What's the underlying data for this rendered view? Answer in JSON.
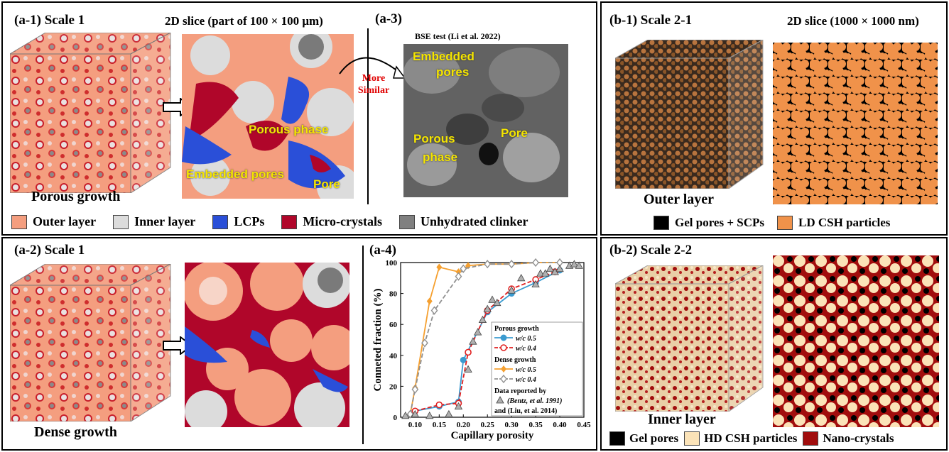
{
  "panel_a1": {
    "title": "(a-1) Scale 1",
    "slice_title": "2D slice (part of 100 × 100 μm)",
    "caption": "Porous growth",
    "labels": {
      "porous_phase": "Porous phase",
      "embedded_pores": "Embedded pores",
      "pore": "Pore"
    }
  },
  "panel_a3": {
    "title": "(a-3)",
    "bse_title": "BSE test (Li et al. 2022)",
    "labels": {
      "embedded": "Embedded",
      "pores": "pores",
      "porous": "Porous",
      "phase": "phase",
      "pore": "Pore"
    },
    "more_similar_line1": "More",
    "more_similar_line2": "Similar"
  },
  "legend_a": [
    {
      "label": "Outer layer",
      "color": "#f49e7f"
    },
    {
      "label": "Inner layer",
      "color": "#dcdcdc"
    },
    {
      "label": "LCPs",
      "color": "#2a4fd8"
    },
    {
      "label": "Micro-crystals",
      "color": "#b0062a"
    },
    {
      "label": "Unhydrated clinker",
      "color": "#808080"
    }
  ],
  "panel_a2": {
    "title": "(a-2) Scale 1",
    "caption": "Dense growth"
  },
  "panel_a4": {
    "title": "(a-4)"
  },
  "panel_b1": {
    "title": "(b-1) Scale 2-1",
    "slice_title": "2D slice (1000 × 1000 nm)",
    "caption": "Outer layer",
    "legend": [
      {
        "label": "Gel pores + SCPs",
        "color": "#000000"
      },
      {
        "label": "LD CSH particles",
        "color": "#f0924a"
      }
    ]
  },
  "panel_b2": {
    "title": "(b-2) Scale 2-2",
    "caption": "Inner layer",
    "legend": [
      {
        "label": "Gel pores",
        "color": "#000000"
      },
      {
        "label": "HD CSH particles",
        "color": "#fbe3b8"
      },
      {
        "label": "Nano-crystals",
        "color": "#a10d0d"
      }
    ]
  },
  "chart_data": {
    "type": "line",
    "xlabel": "Capillary porosity",
    "ylabel": "Conneted fraction (%)",
    "xlim": [
      0.07,
      0.45
    ],
    "ylim": [
      0,
      100
    ],
    "xticks": [
      "0.10",
      "0.15",
      "0.20",
      "0.25",
      "0.30",
      "0.35",
      "0.40",
      "0.45"
    ],
    "yticks": [
      "0",
      "20",
      "40",
      "60",
      "80",
      "100"
    ],
    "legend_groups": [
      "Porous growth",
      "Dense growth",
      "Data reported by",
      "(Bentz, et al. 1991)",
      "and  (Liu, et al. 2014)"
    ],
    "legend_series_labels": [
      "w/c 0.5",
      "w/c 0.4",
      "w/c 0.5",
      "w/c 0.4"
    ],
    "series": [
      {
        "name": "w/c 0.5",
        "group": "Porous growth",
        "color": "#3b9bd0",
        "marker": "circle-filled",
        "dash": false,
        "x": [
          0.1,
          0.15,
          0.19,
          0.2,
          0.25,
          0.3,
          0.35,
          0.4
        ],
        "y": [
          4,
          7,
          10,
          37,
          68,
          80,
          87,
          95
        ]
      },
      {
        "name": "w/c 0.4",
        "group": "Porous growth",
        "color": "#e02020",
        "marker": "circle-open",
        "dash": true,
        "x": [
          0.1,
          0.15,
          0.19,
          0.21,
          0.25,
          0.3,
          0.35,
          0.39
        ],
        "y": [
          4,
          8,
          9,
          42,
          69,
          83,
          89,
          94
        ]
      },
      {
        "name": "w/c 0.5",
        "group": "Dense growth",
        "color": "#f5a030",
        "marker": "diamond-filled",
        "dash": false,
        "x": [
          0.09,
          0.1,
          0.13,
          0.15,
          0.19,
          0.21,
          0.25,
          0.3,
          0.35,
          0.4
        ],
        "y": [
          2,
          19,
          75,
          97,
          94,
          98,
          99,
          99,
          100,
          100
        ]
      },
      {
        "name": "w/c 0.4",
        "group": "Dense growth",
        "color": "#909090",
        "marker": "diamond-open",
        "dash": true,
        "x": [
          0.09,
          0.1,
          0.12,
          0.14,
          0.19,
          0.2,
          0.25,
          0.3,
          0.35,
          0.4
        ],
        "y": [
          2,
          18,
          48,
          69,
          91,
          96,
          99,
          99,
          100,
          100
        ]
      },
      {
        "name": "Data reported by (Bentz, et al. 1991) and (Liu, et al. 2014)",
        "color": "#808080",
        "marker": "triangle",
        "scatter": true,
        "x": [
          0.08,
          0.1,
          0.13,
          0.17,
          0.19,
          0.21,
          0.22,
          0.23,
          0.24,
          0.25,
          0.26,
          0.27,
          0.3,
          0.32,
          0.35,
          0.36,
          0.37,
          0.38,
          0.39,
          0.4,
          0.42,
          0.43,
          0.44
        ],
        "y": [
          1,
          2,
          1,
          2,
          7,
          31,
          49,
          55,
          63,
          70,
          76,
          74,
          82,
          90,
          86,
          93,
          93,
          96,
          94,
          96,
          98,
          99,
          98
        ]
      }
    ]
  }
}
